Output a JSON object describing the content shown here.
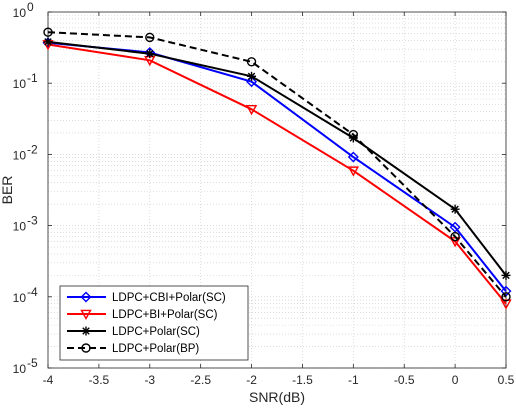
{
  "chart_data": {
    "type": "line",
    "title": "",
    "xlabel": "SNR(dB)",
    "ylabel": "BER",
    "xlim": [
      -4,
      0.5
    ],
    "ylim": [
      1e-05,
      1
    ],
    "yscale": "log",
    "grid": "major and minor, dotted",
    "legend_position": "bottom-left",
    "x_ticks": [
      "-4",
      "-3.5",
      "-3",
      "-2.5",
      "-2",
      "-1.5",
      "-1",
      "-0.5",
      "0",
      "0.5"
    ],
    "y_ticks": [
      {
        "base": "10",
        "exp": "0"
      },
      {
        "base": "10",
        "exp": "-1"
      },
      {
        "base": "10",
        "exp": "-2"
      },
      {
        "base": "10",
        "exp": "-3"
      },
      {
        "base": "10",
        "exp": "-4"
      },
      {
        "base": "10",
        "exp": "-5"
      }
    ],
    "x": [
      -4,
      -3,
      -2,
      -1,
      0,
      0.5
    ],
    "series": [
      {
        "name": "LDPC+CBI+Polar(SC)",
        "color": "#0000ff",
        "line_style": "solid",
        "marker": "diamond",
        "values": [
          0.37,
          0.27,
          0.105,
          0.0092,
          0.00095,
          0.00012
        ]
      },
      {
        "name": "LDPC+BI+Polar(SC)",
        "color": "#ff0000",
        "line_style": "solid",
        "marker": "triangle-down",
        "values": [
          0.35,
          0.21,
          0.043,
          0.0059,
          0.0006,
          8e-05
        ]
      },
      {
        "name": "LDPC+Polar(SC)",
        "color": "#000000",
        "line_style": "solid",
        "marker": "asterisk",
        "values": [
          0.38,
          0.26,
          0.125,
          0.017,
          0.0017,
          0.0002
        ]
      },
      {
        "name": "LDPC+Polar(BP)",
        "color": "#000000",
        "line_style": "dashed",
        "marker": "circle",
        "values": [
          0.52,
          0.44,
          0.2,
          0.019,
          0.0007,
          0.0001
        ]
      }
    ]
  }
}
